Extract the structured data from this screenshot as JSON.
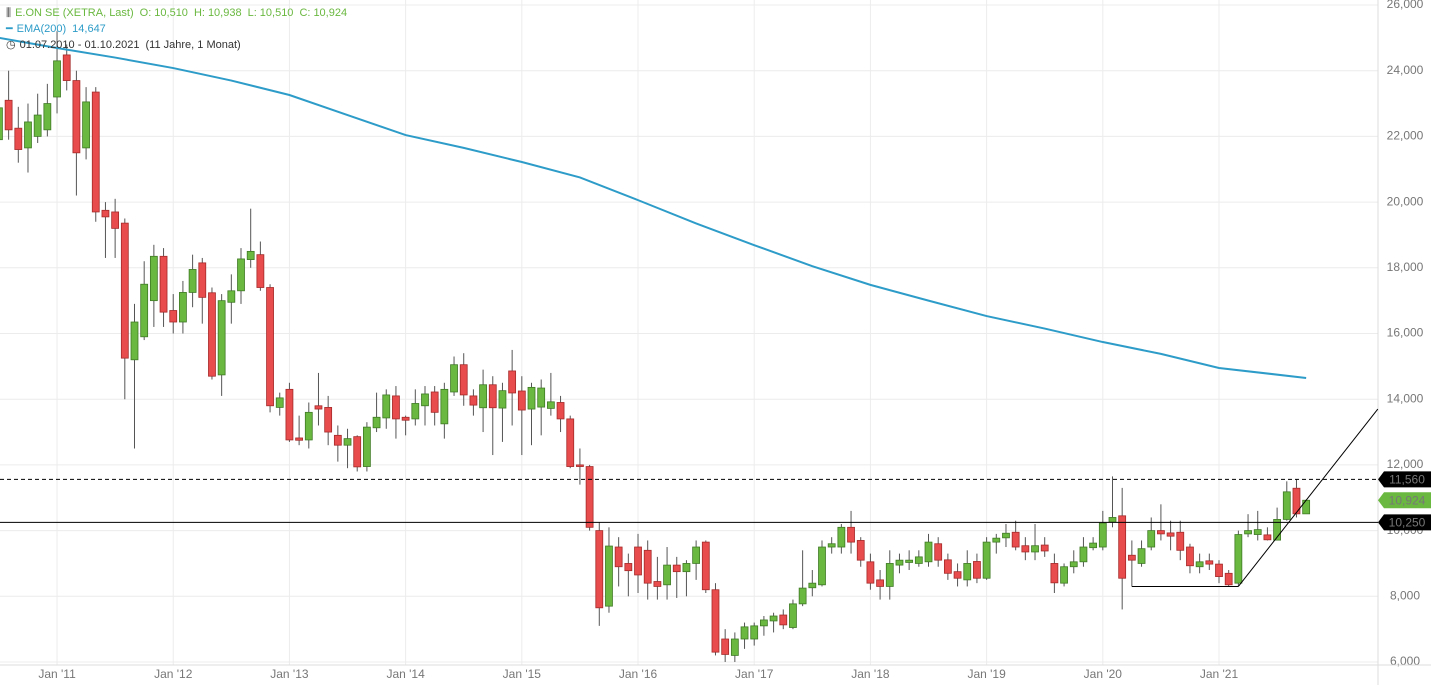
{
  "chart_data": {
    "type": "candlestick",
    "title": "E.ON SE (XETRA, Last)",
    "quote": [
      {
        "key": "O:",
        "text": "10,510"
      },
      {
        "key": "H:",
        "text": "10,938"
      },
      {
        "key": "L:",
        "text": "10,510"
      },
      {
        "key": "C:",
        "text": "10,924"
      }
    ],
    "period": "01.07.2010 - 01.10.2021",
    "period_length": "(11 Jahre, 1 Monat)",
    "xlim": [
      0.11,
      142.42
    ],
    "xticks": [
      {
        "value": 6,
        "label": "Jan '11"
      },
      {
        "value": 18,
        "label": "Jan '12"
      },
      {
        "value": 30,
        "label": "Jan '13"
      },
      {
        "value": 42,
        "label": "Jan '14"
      },
      {
        "value": 54,
        "label": "Jan '15"
      },
      {
        "value": 66,
        "label": "Jan '16"
      },
      {
        "value": 78,
        "label": "Jan '17"
      },
      {
        "value": 90,
        "label": "Jan '18"
      },
      {
        "value": 102,
        "label": "Jan '19"
      },
      {
        "value": 114,
        "label": "Jan '20"
      },
      {
        "value": 126,
        "label": "Jan '21"
      }
    ],
    "ylim": [
      6000,
      26000
    ],
    "yticks": [
      {
        "value": 6000,
        "label": "6,000"
      },
      {
        "value": 8000,
        "label": "8,000"
      },
      {
        "value": 10000,
        "label": "10,000"
      },
      {
        "value": 12000,
        "label": "12,000"
      },
      {
        "value": 14000,
        "label": "14,000"
      },
      {
        "value": 16000,
        "label": "16,000"
      },
      {
        "value": 18000,
        "label": "18,000"
      },
      {
        "value": 20000,
        "label": "20,000"
      },
      {
        "value": 22000,
        "label": "22,000"
      },
      {
        "value": 24000,
        "label": "24,000"
      },
      {
        "value": 26000,
        "label": "26,000"
      }
    ],
    "grid": true,
    "up_color": "#6ab840",
    "down_color": "#e84c4c",
    "ohlc": [
      [
        21900,
        23300,
        21700,
        22870
      ],
      [
        23100,
        24000,
        21900,
        22200
      ],
      [
        22250,
        22900,
        21200,
        21600
      ],
      [
        21650,
        23000,
        20900,
        22440
      ],
      [
        22000,
        23300,
        21800,
        22650
      ],
      [
        22200,
        23600,
        22000,
        23000
      ],
      [
        23200,
        25200,
        22700,
        24300
      ],
      [
        24480,
        24800,
        23400,
        23700
      ],
      [
        23700,
        24000,
        20200,
        21500
      ],
      [
        21650,
        23500,
        21300,
        23050
      ],
      [
        23350,
        23500,
        19400,
        19700
      ],
      [
        19750,
        20000,
        18300,
        19550
      ],
      [
        19700,
        20100,
        18300,
        19200
      ],
      [
        19360,
        19500,
        14000,
        15250
      ],
      [
        15200,
        16900,
        12500,
        16350
      ],
      [
        15900,
        18200,
        15800,
        17500
      ],
      [
        17000,
        18700,
        16200,
        18350
      ],
      [
        18350,
        18600,
        16200,
        16650
      ],
      [
        16700,
        17200,
        16000,
        16350
      ],
      [
        16350,
        17600,
        16000,
        17250
      ],
      [
        17250,
        18400,
        16800,
        17950
      ],
      [
        18150,
        18300,
        16300,
        17100
      ],
      [
        17240,
        17400,
        14600,
        14700
      ],
      [
        14740,
        17200,
        14100,
        17000
      ],
      [
        16950,
        17800,
        16300,
        17300
      ],
      [
        17300,
        18600,
        16900,
        18270
      ],
      [
        18250,
        19800,
        18000,
        18500
      ],
      [
        18400,
        18800,
        17300,
        17400
      ],
      [
        17400,
        17500,
        13600,
        13800
      ],
      [
        13750,
        14200,
        13500,
        14040
      ],
      [
        14300,
        14500,
        12700,
        12760
      ],
      [
        12820,
        13500,
        12600,
        12750
      ],
      [
        12760,
        13900,
        12500,
        13600
      ],
      [
        13800,
        14800,
        13200,
        13700
      ],
      [
        13750,
        14100,
        12600,
        13000
      ],
      [
        12900,
        13200,
        12100,
        12600
      ],
      [
        12600,
        13100,
        11900,
        12800
      ],
      [
        12860,
        12900,
        11800,
        11940
      ],
      [
        11950,
        13300,
        11800,
        13150
      ],
      [
        13130,
        14200,
        13000,
        13450
      ],
      [
        13430,
        14300,
        13100,
        14130
      ],
      [
        14100,
        14400,
        12800,
        13400
      ],
      [
        13450,
        13500,
        12900,
        13360
      ],
      [
        13400,
        14300,
        13200,
        13870
      ],
      [
        13800,
        14400,
        13200,
        14160
      ],
      [
        14220,
        14400,
        13200,
        13600
      ],
      [
        13250,
        14500,
        12800,
        14300
      ],
      [
        14220,
        15300,
        14100,
        15050
      ],
      [
        15050,
        15400,
        13800,
        14130
      ],
      [
        14100,
        14300,
        13500,
        13820
      ],
      [
        13740,
        14900,
        13000,
        14440
      ],
      [
        14440,
        14700,
        12300,
        13740
      ],
      [
        13730,
        14500,
        12700,
        14260
      ],
      [
        14860,
        15500,
        13200,
        14190
      ],
      [
        14250,
        14700,
        12300,
        13670
      ],
      [
        13700,
        14500,
        12600,
        14360
      ],
      [
        13760,
        14600,
        12900,
        14340
      ],
      [
        13720,
        14800,
        13500,
        13920
      ],
      [
        13900,
        14100,
        13000,
        13400
      ],
      [
        13400,
        13500,
        11900,
        11950
      ],
      [
        12000,
        12500,
        11400,
        11950
      ],
      [
        11950,
        12000,
        10000,
        10100
      ],
      [
        10000,
        10250,
        7100,
        7650
      ],
      [
        7700,
        10100,
        7500,
        9530
      ],
      [
        9500,
        9800,
        8300,
        8900
      ],
      [
        9000,
        9300,
        8000,
        8780
      ],
      [
        9500,
        9900,
        8100,
        8650
      ],
      [
        9400,
        9700,
        7900,
        8400
      ],
      [
        8450,
        9200,
        7900,
        8300
      ],
      [
        8350,
        9500,
        7900,
        8950
      ],
      [
        8950,
        9200,
        7950,
        8750
      ],
      [
        8750,
        9100,
        8000,
        9000
      ],
      [
        9000,
        9700,
        8500,
        9500
      ],
      [
        9650,
        9700,
        8100,
        8200
      ],
      [
        8200,
        8400,
        6200,
        6300
      ],
      [
        6700,
        7000,
        6000,
        6230
      ],
      [
        6200,
        6900,
        6000,
        6700
      ],
      [
        6700,
        7200,
        6400,
        7070
      ],
      [
        6700,
        7200,
        6500,
        7100
      ],
      [
        7100,
        7400,
        6800,
        7280
      ],
      [
        7250,
        7500,
        6900,
        7400
      ],
      [
        7430,
        7600,
        7000,
        7130
      ],
      [
        7050,
        7900,
        7000,
        7770
      ],
      [
        7770,
        9400,
        7700,
        8250
      ],
      [
        8260,
        8800,
        8000,
        8400
      ],
      [
        8350,
        9700,
        8300,
        9500
      ],
      [
        9500,
        9800,
        9300,
        9600
      ],
      [
        9500,
        10200,
        9300,
        10100
      ],
      [
        10100,
        10600,
        9300,
        9650
      ],
      [
        9700,
        9800,
        8900,
        9100
      ],
      [
        9050,
        9300,
        8200,
        8400
      ],
      [
        8500,
        8800,
        7900,
        8300
      ],
      [
        8300,
        9400,
        7900,
        9000
      ],
      [
        8950,
        9300,
        8700,
        9100
      ],
      [
        9030,
        9400,
        8800,
        9100
      ],
      [
        9000,
        9400,
        8900,
        9200
      ],
      [
        9050,
        9900,
        8900,
        9650
      ],
      [
        9600,
        9800,
        8900,
        9100
      ],
      [
        9110,
        9300,
        8500,
        8700
      ],
      [
        8750,
        9000,
        8300,
        8550
      ],
      [
        8500,
        9400,
        8300,
        9000
      ],
      [
        9060,
        9300,
        8400,
        8550
      ],
      [
        8550,
        9800,
        8500,
        9650
      ],
      [
        9650,
        9900,
        9300,
        9770
      ],
      [
        9780,
        10200,
        9500,
        9920
      ],
      [
        9950,
        10300,
        9400,
        9500
      ],
      [
        9540,
        9800,
        9100,
        9350
      ],
      [
        9350,
        10200,
        9100,
        9540
      ],
      [
        9560,
        9800,
        9200,
        9380
      ],
      [
        9000,
        9300,
        8100,
        8410
      ],
      [
        8400,
        9000,
        8300,
        8900
      ],
      [
        8900,
        9400,
        8700,
        9050
      ],
      [
        9050,
        9800,
        8900,
        9500
      ],
      [
        9480,
        9800,
        9400,
        9620
      ],
      [
        9500,
        10600,
        9400,
        10230
      ],
      [
        10260,
        11650,
        10100,
        10400
      ],
      [
        10450,
        11300,
        7600,
        8550
      ],
      [
        9250,
        9700,
        8300,
        9100
      ],
      [
        9000,
        9700,
        8900,
        9450
      ],
      [
        9500,
        10400,
        9400,
        10000
      ],
      [
        10000,
        10800,
        9700,
        9900
      ],
      [
        9930,
        10300,
        9400,
        9830
      ],
      [
        9950,
        10300,
        9100,
        9400
      ],
      [
        9500,
        9600,
        8700,
        8930
      ],
      [
        8900,
        9300,
        8700,
        9050
      ],
      [
        9080,
        9300,
        8800,
        8980
      ],
      [
        8980,
        9100,
        8400,
        8600
      ],
      [
        8700,
        8800,
        8300,
        8350
      ],
      [
        8400,
        10000,
        8300,
        9880
      ],
      [
        9900,
        10500,
        9800,
        10000
      ],
      [
        9880,
        10600,
        9700,
        10030
      ],
      [
        9870,
        10100,
        9700,
        9720
      ],
      [
        9710,
        10700,
        9700,
        10340
      ],
      [
        10340,
        11500,
        10300,
        11180
      ],
      [
        11290,
        11560,
        10400,
        10510
      ],
      [
        10510,
        10938,
        10510,
        10924
      ]
    ],
    "ema": {
      "name": "EMA(200)",
      "value_label": "14,647",
      "color": "#2e9cc8",
      "x": [
        0,
        6,
        12,
        18,
        24,
        30,
        36,
        42,
        48,
        54,
        60,
        66,
        72,
        78,
        84,
        90,
        96,
        102,
        108,
        114,
        120,
        126,
        135
      ],
      "values": [
        25000,
        24690,
        24400,
        24080,
        23700,
        23260,
        22650,
        22040,
        21650,
        21220,
        20750,
        20060,
        19350,
        18690,
        18050,
        17480,
        17000,
        16530,
        16150,
        15740,
        15380,
        14950,
        14647
      ]
    },
    "levels": [
      {
        "value": 11560,
        "label": "11,560",
        "line": "dashed",
        "color": "#000000"
      },
      {
        "value": 10924,
        "label": "10,924",
        "line": "none",
        "color": "#6ab840"
      },
      {
        "value": 10250,
        "label": "10,250",
        "line": "solid",
        "color": "#000000"
      }
    ],
    "trendlines": [
      {
        "points": [
          [
            117,
            8300
          ],
          [
            128,
            8300
          ]
        ]
      },
      {
        "points": [
          [
            128,
            8300
          ],
          [
            142.4,
            13700
          ]
        ]
      }
    ]
  }
}
